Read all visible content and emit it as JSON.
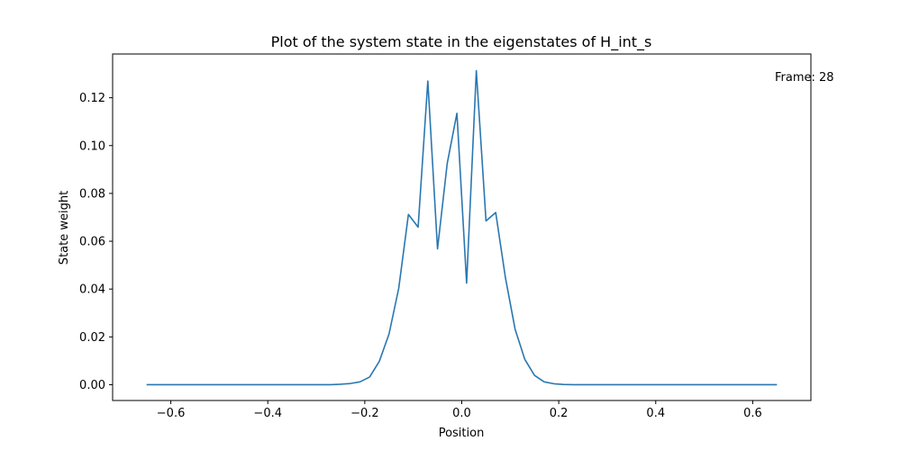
{
  "chart_data": {
    "type": "line",
    "title": "Plot of the system state in the eigenstates of H_int_s",
    "xlabel": "Position",
    "ylabel": "State weight",
    "xlim": [
      -0.72,
      0.72
    ],
    "ylim": [
      -0.0066,
      0.1383
    ],
    "xticks": [
      -0.6,
      -0.4,
      -0.2,
      0.0,
      0.2,
      0.4,
      0.6
    ],
    "xtick_labels": [
      "−0.6",
      "−0.4",
      "−0.2",
      "0.0",
      "0.2",
      "0.4",
      "0.6"
    ],
    "yticks": [
      0.0,
      0.02,
      0.04,
      0.06,
      0.08,
      0.1,
      0.12
    ],
    "ytick_labels": [
      "0.00",
      "0.02",
      "0.04",
      "0.06",
      "0.08",
      "0.10",
      "0.12"
    ],
    "grid": false,
    "annotation": "Frame: 28",
    "color": "#2a77b0",
    "series": [
      {
        "x": [
          -0.65,
          -0.63,
          -0.61,
          -0.59,
          -0.57,
          -0.55,
          -0.53,
          -0.51,
          -0.49,
          -0.47,
          -0.45,
          -0.43,
          -0.41,
          -0.39,
          -0.37,
          -0.35,
          -0.33,
          -0.31,
          -0.29,
          -0.27,
          -0.25,
          -0.23,
          -0.21,
          -0.19,
          -0.17,
          -0.15,
          -0.13,
          -0.11,
          -0.09,
          -0.07,
          -0.05,
          -0.03,
          -0.01,
          0.01,
          0.03,
          0.05,
          0.07,
          0.09,
          0.11,
          0.13,
          0.15,
          0.17,
          0.19,
          0.21,
          0.23,
          0.25,
          0.27,
          0.29,
          0.31,
          0.33,
          0.35,
          0.37,
          0.39,
          0.41,
          0.43,
          0.45,
          0.47,
          0.49,
          0.51,
          0.53,
          0.55,
          0.57,
          0.59,
          0.61,
          0.63,
          0.65
        ],
        "y": [
          0.0,
          0.0,
          0.0,
          0.0,
          0.0,
          0.0,
          0.0,
          0.0,
          0.0,
          0.0,
          0.0,
          0.0,
          0.0,
          0.0,
          0.0,
          0.0,
          0.0,
          0.0,
          0.0,
          0.0,
          0.0002,
          0.0005,
          0.0012,
          0.0032,
          0.0098,
          0.0212,
          0.0403,
          0.0712,
          0.0659,
          0.127,
          0.0568,
          0.0925,
          0.1135,
          0.0425,
          0.1313,
          0.0685,
          0.072,
          0.0448,
          0.0232,
          0.0106,
          0.0039,
          0.0012,
          0.0004,
          0.0001,
          0.0,
          0.0,
          0.0,
          0.0,
          0.0,
          0.0,
          0.0,
          0.0,
          0.0,
          0.0,
          0.0,
          0.0,
          0.0,
          0.0,
          0.0,
          0.0,
          0.0,
          0.0,
          0.0,
          0.0,
          0.0,
          0.0
        ]
      }
    ]
  }
}
